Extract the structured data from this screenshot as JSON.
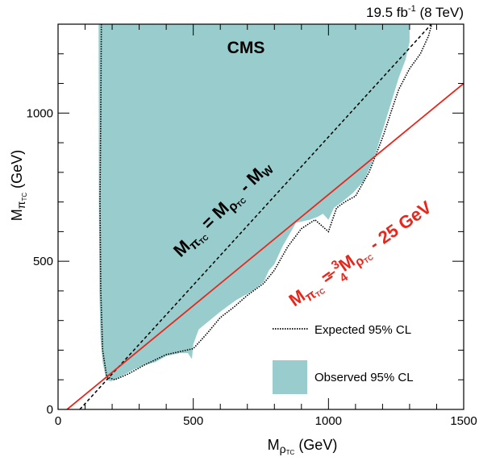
{
  "chart_data": {
    "type": "area",
    "experiment_label": "CMS",
    "lumi_label": "19.5 fb",
    "lumi_exponent": "-1",
    "energy_label": "(8 TeV)",
    "xlabel_main": "M",
    "xlabel_sub": "ρ",
    "xlabel_subsub": "TC",
    "xlabel_unit": "(GeV)",
    "ylabel_main": "M",
    "ylabel_sub": "π",
    "ylabel_subsub": "TC",
    "ylabel_unit": "(GeV)",
    "xlim": [
      0,
      1500
    ],
    "ylim": [
      0,
      1300
    ],
    "xticks": [
      0,
      500,
      1000,
      1500
    ],
    "yticks": [
      0,
      500,
      1000
    ],
    "colors": {
      "observed": "#99cccc",
      "diagonal": "#000000",
      "redline": "#e8261c"
    },
    "legend": {
      "expected_label": "Expected 95% CL",
      "observed_label": "Observed 95% CL"
    },
    "annotations": {
      "diag_main": "M",
      "diag_sub": "π",
      "diag_subsub": "TC",
      "diag_eq": " = M",
      "diag_sub2": "ρ",
      "diag_subsub2": "TC",
      "diag_tail": " - M",
      "diag_w": "W",
      "red_main": "M",
      "red_sub": "π",
      "red_subsub": "TC",
      "red_eq": " = ",
      "red_num": "3",
      "red_den": "4",
      "red_m": "M",
      "red_sub2": "ρ",
      "red_subsub2": "TC",
      "red_tail": " - 25 GeV"
    },
    "diagonal_line": {
      "label": "M_pi = M_rho - M_W",
      "points": [
        [
          80.4,
          0
        ],
        [
          1380.4,
          1300
        ]
      ]
    },
    "red_line": {
      "label": "M_pi = 3/4 M_rho - 25 GeV",
      "points": [
        [
          33.3,
          0
        ],
        [
          1500,
          1100
        ]
      ]
    },
    "observed_exclusion": {
      "points": [
        [
          150,
          1300
        ],
        [
          1300,
          1300
        ],
        [
          1300,
          1240
        ],
        [
          1285,
          1180
        ],
        [
          1260,
          1120
        ],
        [
          1240,
          1060
        ],
        [
          1220,
          1000
        ],
        [
          1200,
          940
        ],
        [
          1180,
          880
        ],
        [
          1155,
          820
        ],
        [
          1130,
          770
        ],
        [
          1090,
          730
        ],
        [
          1050,
          700
        ],
        [
          1020,
          680
        ],
        [
          1000,
          640
        ],
        [
          980,
          660
        ],
        [
          960,
          650
        ],
        [
          930,
          640
        ],
        [
          880,
          630
        ],
        [
          830,
          550
        ],
        [
          800,
          490
        ],
        [
          780,
          470
        ],
        [
          760,
          430
        ],
        [
          720,
          400
        ],
        [
          660,
          370
        ],
        [
          600,
          330
        ],
        [
          560,
          300
        ],
        [
          520,
          270
        ],
        [
          500,
          220
        ],
        [
          495,
          170
        ],
        [
          480,
          190
        ],
        [
          470,
          190
        ],
        [
          450,
          190
        ],
        [
          400,
          180
        ],
        [
          360,
          160
        ],
        [
          320,
          150
        ],
        [
          280,
          135
        ],
        [
          250,
          120
        ],
        [
          210,
          100
        ],
        [
          195,
          95
        ],
        [
          178,
          100
        ],
        [
          165,
          160
        ],
        [
          157,
          240
        ],
        [
          153,
          400
        ],
        [
          151,
          700
        ],
        [
          150,
          1300
        ]
      ]
    },
    "expected_limit": {
      "points": [
        [
          160,
          1300
        ],
        [
          158,
          1000
        ],
        [
          155,
          700
        ],
        [
          158,
          400
        ],
        [
          165,
          200
        ],
        [
          180,
          110
        ],
        [
          210,
          100
        ],
        [
          260,
          120
        ],
        [
          320,
          150
        ],
        [
          400,
          185
        ],
        [
          450,
          195
        ],
        [
          500,
          205
        ],
        [
          550,
          255
        ],
        [
          600,
          310
        ],
        [
          650,
          345
        ],
        [
          700,
          385
        ],
        [
          760,
          425
        ],
        [
          800,
          470
        ],
        [
          850,
          550
        ],
        [
          900,
          610
        ],
        [
          950,
          640
        ],
        [
          1000,
          600
        ],
        [
          1030,
          680
        ],
        [
          1060,
          700
        ],
        [
          1100,
          720
        ],
        [
          1150,
          800
        ],
        [
          1180,
          870
        ],
        [
          1205,
          930
        ],
        [
          1230,
          1000
        ],
        [
          1260,
          1080
        ],
        [
          1300,
          1150
        ],
        [
          1340,
          1200
        ],
        [
          1370,
          1260
        ],
        [
          1382,
          1300
        ]
      ]
    }
  }
}
